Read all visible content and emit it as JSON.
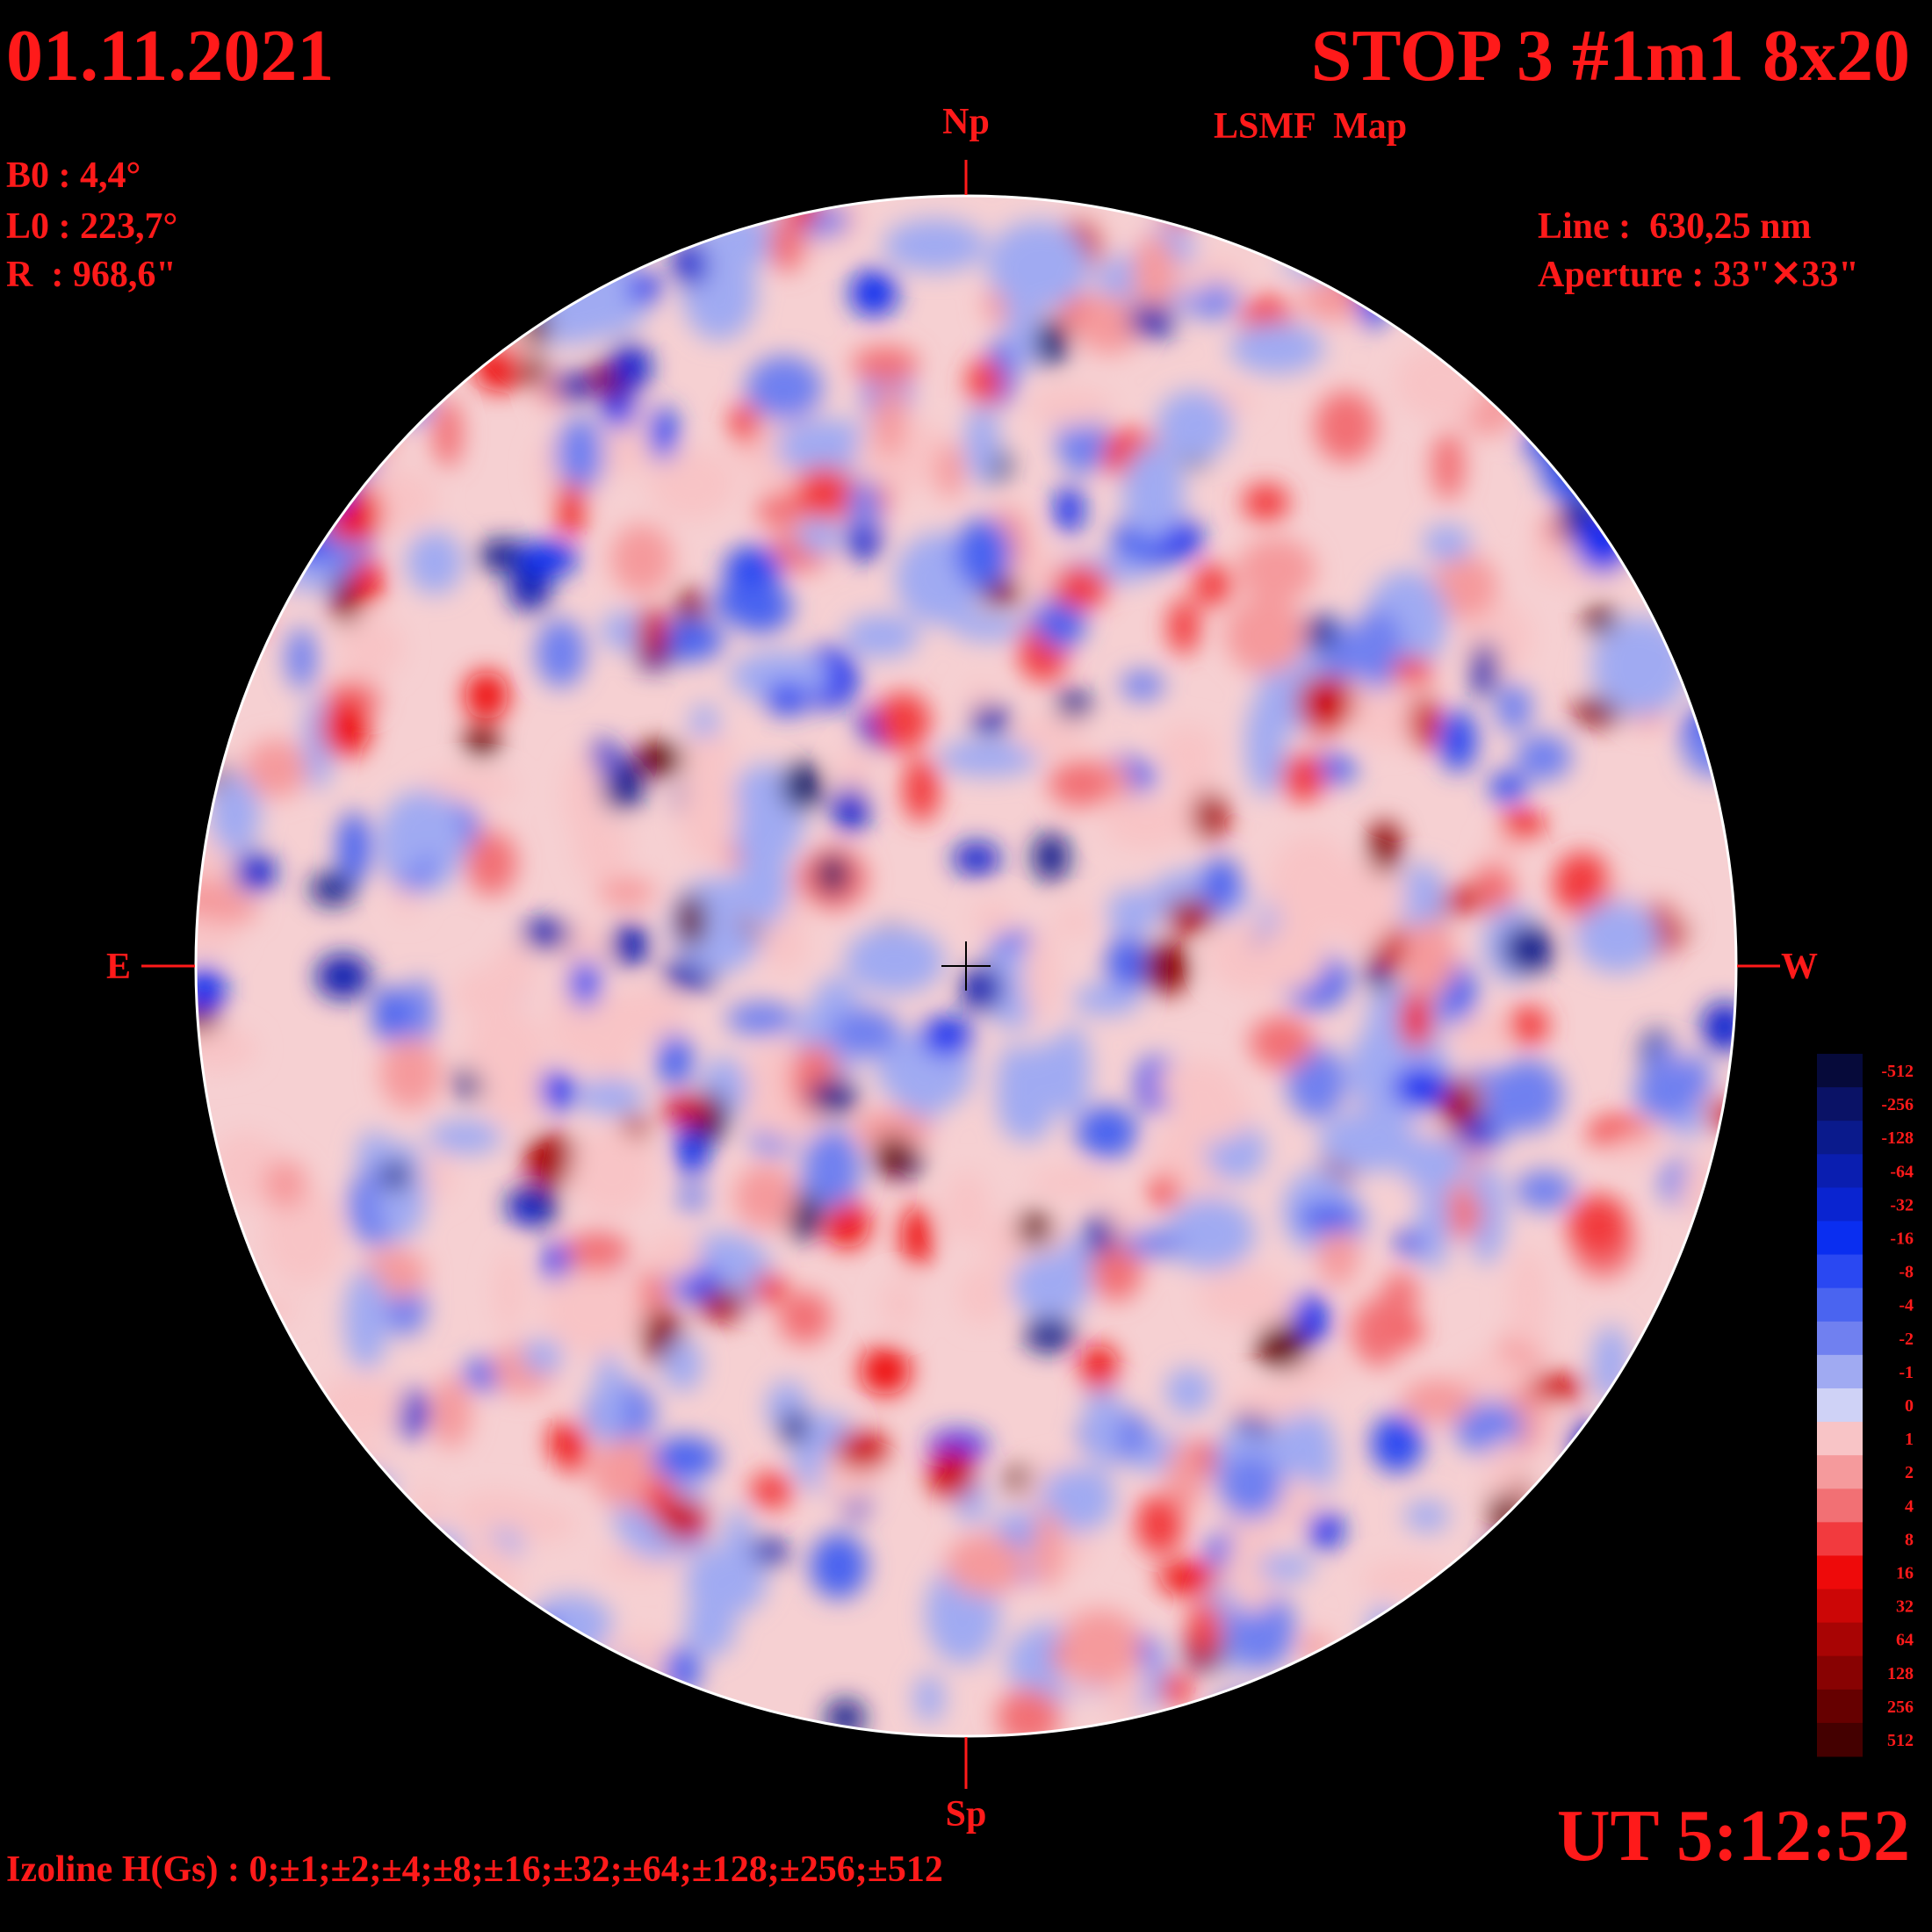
{
  "header": {
    "date": "01.11.2021",
    "title": "STOP 3 #1m1 8x20",
    "subtitle": "LSMF  Map"
  },
  "params": {
    "b0": "B0 : 4,4°",
    "l0": "L0 : 223,7°",
    "r": "R  : 968,6\"",
    "line": "Line :  630,25 nm",
    "aperture": "Aperture : 33\"✕33\""
  },
  "compass": {
    "north": "Np",
    "south": "Sp",
    "east": "E",
    "west": "W"
  },
  "footer": {
    "izoline": "Izoline H(Gs) : 0;±1;±2;±4;±8;±16;±32;±64;±128;±256;±512",
    "time": "UT 5:12:52"
  },
  "colorbar": {
    "levels": [
      "-512",
      "-256",
      "-128",
      "-64",
      "-32",
      "-16",
      "-8",
      "-4",
      "-2",
      "-1",
      "0",
      "1",
      "2",
      "4",
      "8",
      "16",
      "32",
      "64",
      "128",
      "256",
      "512"
    ],
    "colors": [
      "#060a3a",
      "#0a1266",
      "#0a1a8c",
      "#0a1eb0",
      "#0a24d0",
      "#0a2ef0",
      "#2a48f2",
      "#4a64f0",
      "#7080f0",
      "#a0aaf2",
      "#cfd2f6",
      "#f8c4c6",
      "#f59a9c",
      "#f27074",
      "#f23a3e",
      "#ee0a0a",
      "#cc0606",
      "#a80404",
      "#880202",
      "#660000",
      "#440000"
    ]
  }
}
